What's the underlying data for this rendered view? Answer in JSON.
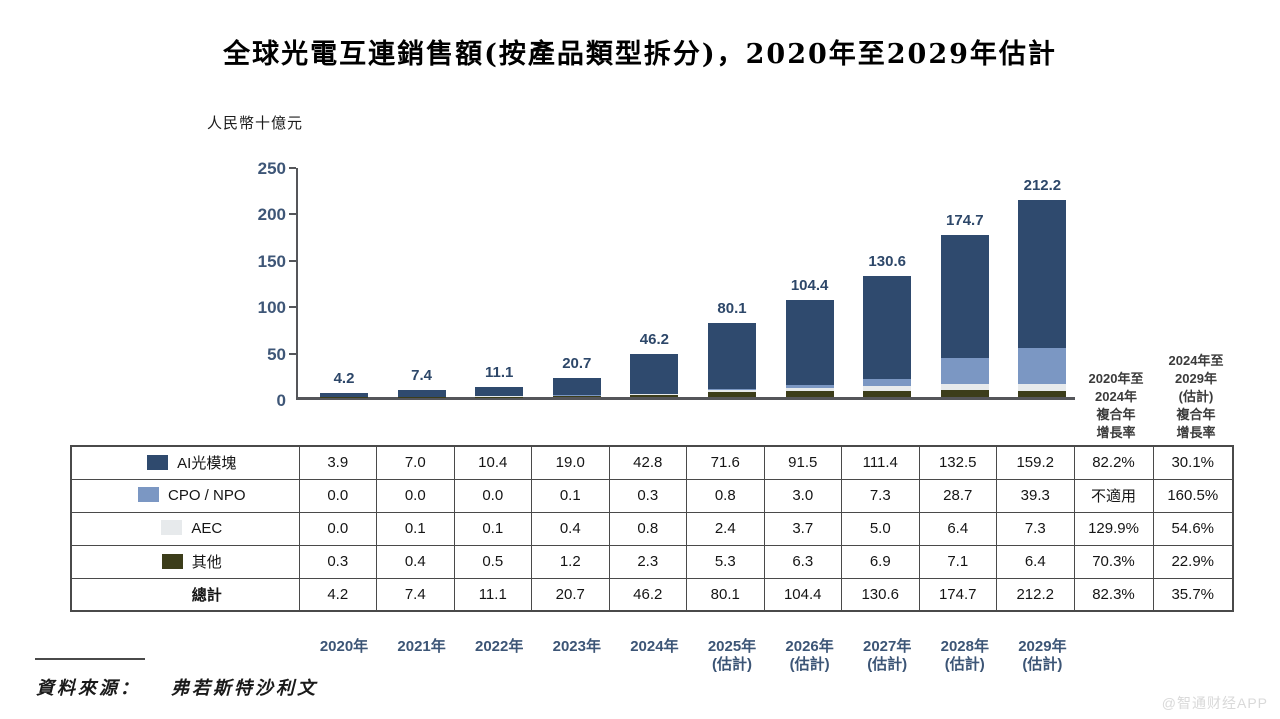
{
  "title": "全球光電互連銷售額(按產品類型拆分)，2020年至2029年估計",
  "unit_label": "人民幣十億元",
  "source": {
    "label": "資料來源：",
    "value": "弗若斯特沙利文"
  },
  "watermark": "@智通财经APP",
  "colors": {
    "ai_module": "#2f4a6e",
    "cpo_npo": "#7b97c3",
    "aec": "#e7eaec",
    "other": "#3c3d1a",
    "axis": "#55565a",
    "axis_text": "#3e5677",
    "value_label": "#2d4769",
    "table_border": "#4a4a4a"
  },
  "chart_data": {
    "type": "bar",
    "stacked": true,
    "title": "全球光電互連銷售額(按產品類型拆分)，2020年至2029年估計",
    "ylabel": "人民幣十億元",
    "ylim": [
      0,
      250
    ],
    "y_ticks": [
      0,
      50,
      100,
      150,
      200,
      250
    ],
    "grid": false,
    "legend_position": "table-left",
    "categories": [
      "2020年",
      "2021年",
      "2022年",
      "2023年",
      "2024年",
      "2025年\n(估計)",
      "2026年\n(估計)",
      "2027年\n(估計)",
      "2028年\n(估計)",
      "2029年\n(估計)"
    ],
    "series": [
      {
        "name": "AI光模塊",
        "color": "#2f4a6e",
        "values": [
          3.9,
          7.0,
          10.4,
          19.0,
          42.8,
          71.6,
          91.5,
          111.4,
          132.5,
          159.2
        ]
      },
      {
        "name": "CPO / NPO",
        "color": "#7b97c3",
        "values": [
          0.0,
          0.0,
          0.0,
          0.1,
          0.3,
          0.8,
          3.0,
          7.3,
          28.7,
          39.3
        ]
      },
      {
        "name": "AEC",
        "color": "#e7eaec",
        "values": [
          0.0,
          0.1,
          0.1,
          0.4,
          0.8,
          2.4,
          3.7,
          5.0,
          6.4,
          7.3
        ]
      },
      {
        "name": "其他",
        "color": "#3c3d1a",
        "values": [
          0.3,
          0.4,
          0.5,
          1.2,
          2.3,
          5.3,
          6.3,
          6.9,
          7.1,
          6.4
        ]
      }
    ],
    "stack_order_bottom_to_top": [
      "其他",
      "AEC",
      "CPO / NPO",
      "AI光模塊"
    ],
    "totals": [
      4.2,
      7.4,
      11.1,
      20.7,
      46.2,
      80.1,
      104.4,
      130.6,
      174.7,
      212.2
    ],
    "total_labels": [
      "4.2",
      "7.4",
      "11.1",
      "20.7",
      "46.2",
      "80.1",
      "104.4",
      "130.6",
      "174.7",
      "212.2"
    ]
  },
  "cagr_headers": [
    {
      "lines": "2020年至\n2024年\n複合年\n增長率"
    },
    {
      "lines": "2024年至\n2029年\n(估計)\n複合年\n增長率"
    }
  ],
  "table": {
    "rows": [
      {
        "label": "AI光模塊",
        "swatch": "#2f4a6e",
        "total": false,
        "values": [
          "3.9",
          "7.0",
          "10.4",
          "19.0",
          "42.8",
          "71.6",
          "91.5",
          "111.4",
          "132.5",
          "159.2"
        ],
        "cagr": [
          "82.2%",
          "30.1%"
        ]
      },
      {
        "label": "CPO / NPO",
        "swatch": "#7b97c3",
        "total": false,
        "values": [
          "0.0",
          "0.0",
          "0.0",
          "0.1",
          "0.3",
          "0.8",
          "3.0",
          "7.3",
          "28.7",
          "39.3"
        ],
        "cagr": [
          "不適用",
          "160.5%"
        ]
      },
      {
        "label": "AEC",
        "swatch": "#e7eaec",
        "total": false,
        "values": [
          "0.0",
          "0.1",
          "0.1",
          "0.4",
          "0.8",
          "2.4",
          "3.7",
          "5.0",
          "6.4",
          "7.3"
        ],
        "cagr": [
          "129.9%",
          "54.6%"
        ]
      },
      {
        "label": "其他",
        "swatch": "#3c3d1a",
        "total": false,
        "values": [
          "0.3",
          "0.4",
          "0.5",
          "1.2",
          "2.3",
          "5.3",
          "6.3",
          "6.9",
          "7.1",
          "6.4"
        ],
        "cagr": [
          "70.3%",
          "22.9%"
        ]
      },
      {
        "label": "總計",
        "swatch": null,
        "total": true,
        "values": [
          "4.2",
          "7.4",
          "11.1",
          "20.7",
          "46.2",
          "80.1",
          "104.4",
          "130.6",
          "174.7",
          "212.2"
        ],
        "cagr": [
          "82.3%",
          "35.7%"
        ]
      }
    ]
  }
}
